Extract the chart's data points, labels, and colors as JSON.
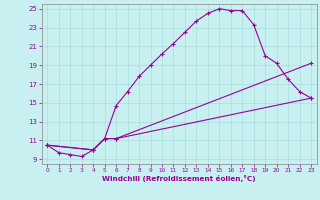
{
  "xlabel": "Windchill (Refroidissement éolien,°C)",
  "bg_color": "#c8f0f0",
  "line_color": "#990099",
  "grid_color": "#aadddd",
  "xlim": [
    -0.5,
    23.5
  ],
  "ylim": [
    8.5,
    25.5
  ],
  "xticks": [
    0,
    1,
    2,
    3,
    4,
    5,
    6,
    7,
    8,
    9,
    10,
    11,
    12,
    13,
    14,
    15,
    16,
    17,
    18,
    19,
    20,
    21,
    22,
    23
  ],
  "yticks": [
    9,
    11,
    13,
    15,
    17,
    19,
    21,
    23,
    25
  ],
  "line1_x": [
    0,
    1,
    2,
    3,
    4,
    5,
    6,
    7,
    8,
    9,
    10,
    11,
    12,
    13,
    14,
    15,
    16,
    17,
    18,
    19,
    20,
    21,
    22,
    23
  ],
  "line1_y": [
    10.5,
    9.7,
    9.5,
    9.3,
    10.0,
    11.2,
    14.7,
    16.2,
    17.8,
    19.0,
    20.2,
    21.3,
    22.5,
    23.7,
    24.5,
    25.0,
    24.8,
    24.8,
    23.3,
    20.0,
    19.2,
    17.5,
    16.2,
    15.5
  ],
  "line2_x": [
    0,
    4,
    5,
    6,
    23
  ],
  "line2_y": [
    10.5,
    10.0,
    11.2,
    11.2,
    19.2
  ],
  "line3_x": [
    0,
    4,
    5,
    6,
    23
  ],
  "line3_y": [
    10.5,
    10.0,
    11.2,
    11.2,
    15.5
  ]
}
